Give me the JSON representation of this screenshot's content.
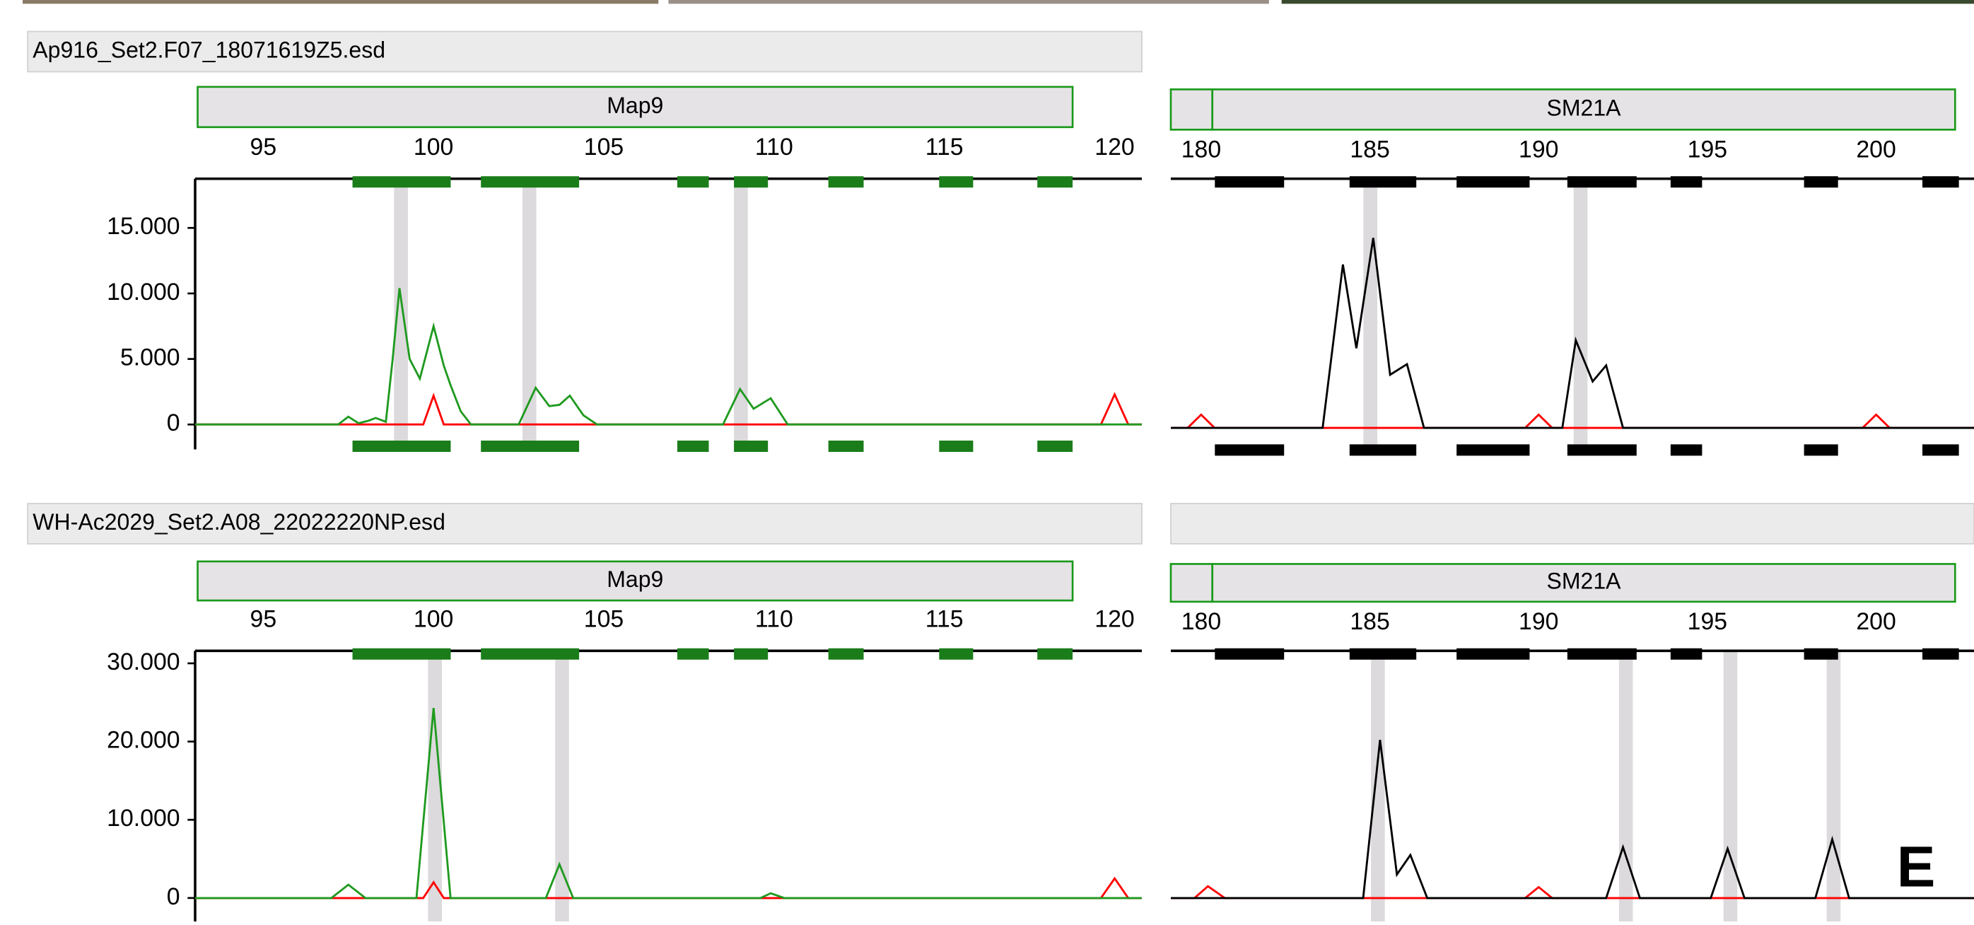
{
  "panel_label": "E",
  "chart_data": [
    {
      "type": "line",
      "title": "Ap916_Set2.F07_18071619Z5.esd",
      "marker": "Map9",
      "xlim": [
        93,
        120.8
      ],
      "xticks": [
        95,
        100,
        105,
        110,
        115,
        120
      ],
      "ylim": [
        -1900,
        18750
      ],
      "yticks": [
        0,
        {
          "value": 5000,
          "label": "5.000"
        },
        {
          "value": 10000,
          "label": "10.000"
        },
        {
          "value": 15000,
          "label": "15.000"
        }
      ],
      "series": [
        {
          "color": "#1f9a1f",
          "x": [
            93,
            97.2,
            97.5,
            97.8,
            98.1,
            98.3,
            98.6,
            98.8,
            99.0,
            99.3,
            99.6,
            100.0,
            100.3,
            100.5,
            100.8,
            101.1,
            102.5,
            103.0,
            103.4,
            103.7,
            104.0,
            104.4,
            104.8,
            108.5,
            109.0,
            109.4,
            109.9,
            110.4,
            120.8
          ],
          "values": [
            0,
            0,
            600,
            100,
            300,
            500,
            200,
            5000,
            10400,
            5000,
            3500,
            7500,
            4500,
            3000,
            1000,
            0,
            0,
            2800,
            1400,
            1500,
            2200,
            700,
            0,
            0,
            2700,
            1200,
            2000,
            0,
            0
          ]
        },
        {
          "color": "#ff0000",
          "x": [
            93,
            99.7,
            100.0,
            100.3,
            119.6,
            120.0,
            120.4,
            120.8
          ],
          "values": [
            0,
            0,
            2200,
            0,
            0,
            2300,
            0,
            0
          ]
        }
      ]
    },
    {
      "type": "line",
      "marker": "SM21A",
      "xlim": [
        179.1,
        202.9
      ],
      "xticks": [
        180,
        185,
        190,
        195,
        200
      ],
      "ylim": [
        -1900,
        18750
      ],
      "series": [
        {
          "color": "#000000",
          "x": [
            179.1,
            183.6,
            184.2,
            184.6,
            185.1,
            185.6,
            186.1,
            186.6,
            190.7,
            191.1,
            191.6,
            192.0,
            192.5,
            202.9
          ],
          "values": [
            0,
            0,
            12300,
            6000,
            14300,
            4000,
            4800,
            0,
            0,
            6600,
            3500,
            4700,
            0,
            0
          ]
        },
        {
          "color": "#ff0000",
          "x": [
            179.1,
            179.6,
            180.0,
            180.4,
            189.6,
            190.0,
            190.4,
            199.6,
            200.0,
            200.4,
            202.9
          ],
          "values": [
            0,
            0,
            1000,
            0,
            0,
            1000,
            0,
            0,
            1000,
            0,
            0
          ]
        }
      ]
    },
    {
      "type": "line",
      "title": "WH-Ac2029_Set2.A08_22022220NP.esd",
      "marker": "Map9",
      "xlim": [
        93,
        120.8
      ],
      "xticks": [
        95,
        100,
        105,
        110,
        115,
        120
      ],
      "ylim": [
        -3000,
        31600
      ],
      "yticks": [
        0,
        {
          "value": 10000,
          "label": "10.000"
        },
        {
          "value": 20000,
          "label": "20.000"
        },
        {
          "value": 30000,
          "label": "30.000"
        }
      ],
      "series": [
        {
          "color": "#1f9a1f",
          "x": [
            93,
            97.0,
            97.5,
            98.0,
            99.5,
            100.0,
            100.5,
            103.3,
            103.7,
            104.1,
            109.6,
            109.9,
            110.3,
            120.8
          ],
          "values": [
            0,
            0,
            1700,
            0,
            0,
            24300,
            0,
            0,
            4300,
            0,
            0,
            600,
            0,
            0
          ]
        },
        {
          "color": "#ff0000",
          "x": [
            93,
            99.7,
            100.0,
            100.3,
            119.6,
            120.0,
            120.4,
            120.8
          ],
          "values": [
            0,
            0,
            2000,
            0,
            0,
            2500,
            0,
            0
          ]
        }
      ]
    },
    {
      "type": "line",
      "marker": "SM21A",
      "xlim": [
        179.1,
        202.9
      ],
      "xticks": [
        180,
        185,
        190,
        195,
        200
      ],
      "ylim": [
        -3000,
        31600
      ],
      "series": [
        {
          "color": "#000000",
          "x": [
            179.1,
            184.8,
            185.3,
            185.8,
            186.2,
            186.7,
            192.0,
            192.5,
            193.0,
            195.1,
            195.6,
            196.1,
            198.2,
            198.7,
            199.2,
            202.9
          ],
          "values": [
            0,
            0,
            20200,
            3000,
            5500,
            0,
            0,
            6500,
            0,
            0,
            6300,
            0,
            0,
            7500,
            0,
            0
          ]
        },
        {
          "color": "#ff0000",
          "x": [
            179.1,
            179.8,
            180.2,
            180.7,
            189.6,
            190.0,
            190.4,
            202.9
          ],
          "values": [
            0,
            0,
            1500,
            0,
            0,
            1400,
            0,
            0
          ]
        }
      ]
    }
  ]
}
